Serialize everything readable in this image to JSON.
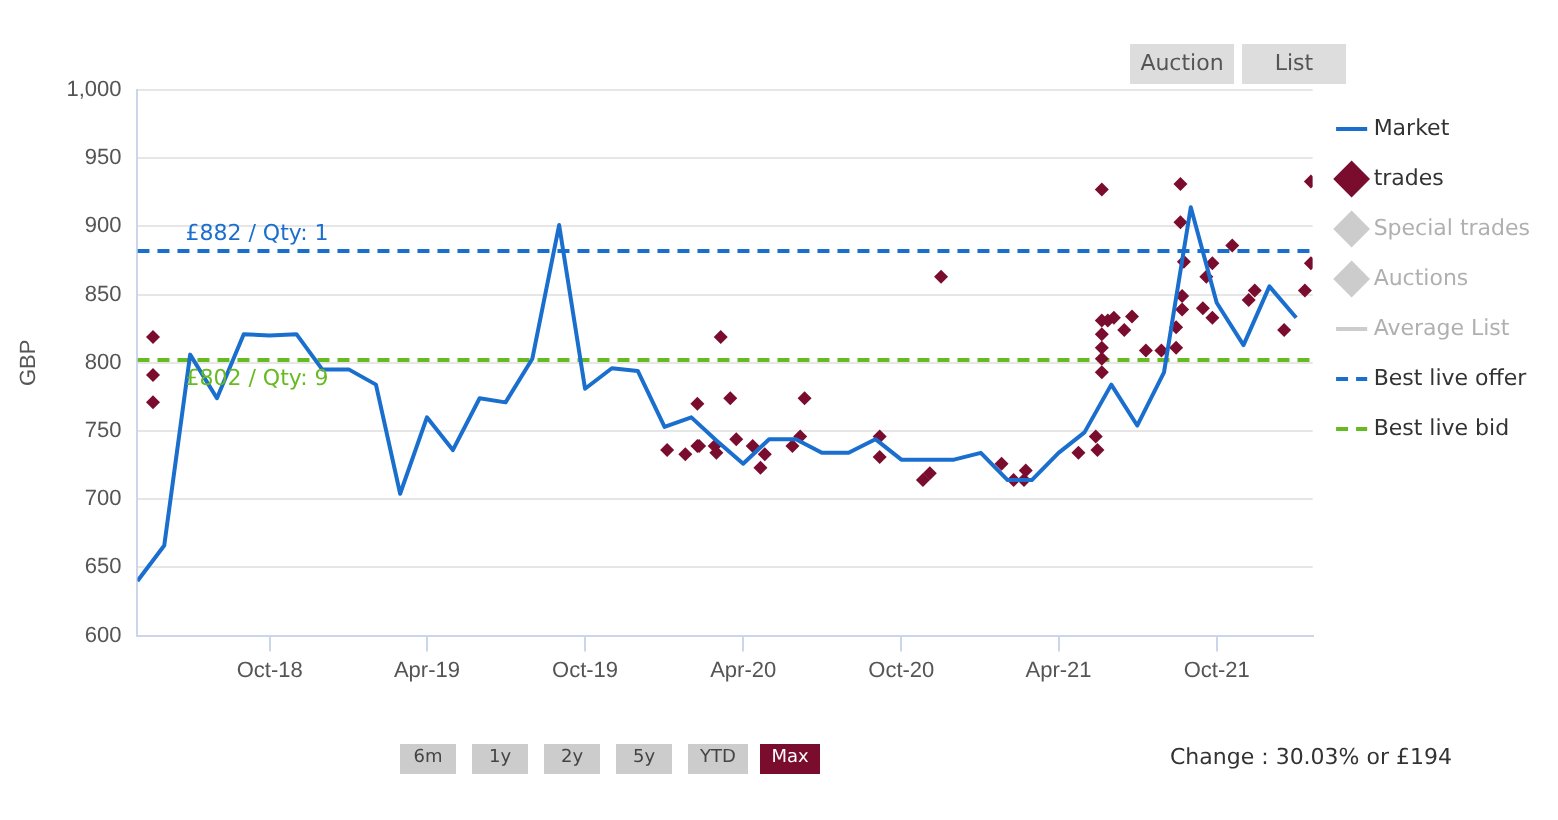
{
  "chart_data": {
    "type": "line",
    "ylabel": "GBP",
    "xlim": [
      "2018-05-01",
      "2022-01-20"
    ],
    "xticks": [
      {
        "value": "2018-10",
        "label": "Oct-18"
      },
      {
        "value": "2019-04",
        "label": "Apr-19"
      },
      {
        "value": "2019-10",
        "label": "Oct-19"
      },
      {
        "value": "2020-04",
        "label": "Apr-20"
      },
      {
        "value": "2020-10",
        "label": "Oct-20"
      },
      {
        "value": "2021-04",
        "label": "Apr-21"
      },
      {
        "value": "2021-10",
        "label": "Oct-21"
      }
    ],
    "ylim": [
      600,
      1000
    ],
    "yticks": [
      600,
      650,
      700,
      750,
      800,
      850,
      900,
      950,
      {
        "value": 1000,
        "label": "1,000"
      }
    ],
    "grid": "y",
    "legend": "right",
    "series": [
      {
        "name": "Market",
        "color": "#1a6fce",
        "marker": "none",
        "x": [
          "2018-05",
          "2018-06",
          "2018-07",
          "2018-08",
          "2018-09",
          "2018-10",
          "2018-11",
          "2018-12",
          "2019-01",
          "2019-02",
          "2019-03",
          "2019-04",
          "2019-05",
          "2019-06",
          "2019-07",
          "2019-08",
          "2019-09",
          "2019-10",
          "2019-11",
          "2019-12",
          "2020-01",
          "2020-02",
          "2020-03",
          "2020-04",
          "2020-05",
          "2020-06",
          "2020-07",
          "2020-08",
          "2020-09",
          "2020-10",
          "2020-12",
          "2021-01",
          "2021-02",
          "2021-03",
          "2021-04",
          "2021-05",
          "2021-06",
          "2021-07",
          "2021-08",
          "2021-09",
          "2021-10",
          "2021-11",
          "2021-12",
          "2022-01"
        ],
        "values": [
          640,
          666,
          806,
          774,
          821,
          820,
          821,
          795,
          795,
          784,
          704,
          760,
          736,
          774,
          771,
          803,
          901,
          781,
          796,
          794,
          753,
          760,
          743,
          726,
          744,
          744,
          734,
          734,
          744,
          729,
          729,
          734,
          714,
          714,
          734,
          749,
          784,
          754,
          793,
          914,
          844,
          813,
          856,
          833
        ]
      },
      {
        "name": "trades",
        "type": "scatter",
        "marker": "diamond",
        "color": "#7a0c2e",
        "x": [
          "2018-05-19",
          "2018-05-19",
          "2018-05-19",
          "2020-01-04",
          "2020-01-25",
          "2020-02-08",
          "2020-02-08",
          "2020-02-10",
          "2020-02-28",
          "2020-03-01",
          "2020-03-06",
          "2020-03-17",
          "2020-03-24",
          "2020-04-12",
          "2020-04-21",
          "2020-04-26",
          "2020-05-28",
          "2020-06-06",
          "2020-06-11",
          "2020-09-06",
          "2020-09-06",
          "2020-10-26",
          "2020-11-03",
          "2020-11-16",
          "2021-01-25",
          "2021-02-08",
          "2021-02-20",
          "2021-02-22",
          "2021-04-24",
          "2021-05-14",
          "2021-05-16",
          "2021-05-21",
          "2021-05-21",
          "2021-05-21",
          "2021-05-21",
          "2021-05-21",
          "2021-05-21",
          "2021-05-28",
          "2021-06-04",
          "2021-06-16",
          "2021-06-25",
          "2021-07-11",
          "2021-07-29",
          "2021-08-15",
          "2021-08-15",
          "2021-08-22",
          "2021-08-22",
          "2021-08-24",
          "2021-08-20",
          "2021-08-20",
          "2021-09-15",
          "2021-09-19",
          "2021-09-26",
          "2021-09-26",
          "2021-10-19",
          "2021-11-07",
          "2021-11-14",
          "2021-12-18",
          "2022-01-11",
          "2022-01-18",
          "2022-01-18"
        ],
        "values": [
          819,
          791,
          771,
          736,
          733,
          770,
          739,
          739,
          739,
          734,
          819,
          774,
          744,
          739,
          723,
          733,
          739,
          746,
          774,
          746,
          731,
          714,
          719,
          863,
          726,
          714,
          714,
          721,
          734,
          746,
          736,
          927,
          831,
          821,
          811,
          803,
          793,
          831,
          833,
          824,
          834,
          809,
          809,
          811,
          826,
          839,
          849,
          874,
          903,
          931,
          840,
          863,
          873,
          833,
          886,
          846,
          853,
          824,
          853,
          873,
          933
        ]
      },
      {
        "name": "Special trades",
        "type": "scatter",
        "marker": "diamond",
        "color": "#cccccc"
      },
      {
        "name": "Auctions",
        "type": "scatter",
        "marker": "diamond",
        "color": "#cccccc"
      },
      {
        "name": "Average List",
        "type": "line",
        "marker": "none",
        "color": "#cccccc"
      },
      {
        "name": "Best live offer",
        "type": "line",
        "marker": "none",
        "line_style": "dashed",
        "color": "#1a6fce",
        "x": [
          "2018-05-01",
          "2022-01-20"
        ],
        "values": [
          882,
          882
        ]
      },
      {
        "name": "Best live bid",
        "type": "line",
        "marker": "none",
        "line_style": "dashed",
        "color": "#66bb22",
        "x": [
          "2018-05-01",
          "2022-01-20"
        ],
        "values": [
          802,
          802
        ]
      }
    ],
    "annotations": [
      {
        "text": "£882 / Qty: 1",
        "x": "2018-05-01",
        "y": 882
      },
      {
        "text": "£802 / Qty: 9",
        "x": "2018-05-01",
        "y": 802
      },
      "Auction",
      "List",
      "6m",
      "1y",
      "2y",
      "5y",
      "YTD",
      "Max",
      "Change : 30.03% or £194"
    ]
  }
}
